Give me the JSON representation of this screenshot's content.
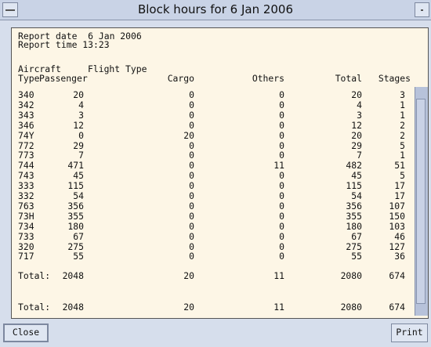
{
  "window": {
    "title": "Block hours for 6 Jan 2006"
  },
  "report": {
    "date_line": "Report date  6 Jan 2006",
    "time_line": "Report time 13:23",
    "group_header": {
      "aircraft": "Aircraft",
      "flight_type": "Flight Type"
    },
    "columns": [
      "Type",
      "Passenger",
      "Cargo",
      "Others",
      "Total",
      "Stages"
    ],
    "rows": [
      [
        "340",
        20,
        0,
        0,
        20,
        3
      ],
      [
        "342",
        4,
        0,
        0,
        4,
        1
      ],
      [
        "343",
        3,
        0,
        0,
        3,
        1
      ],
      [
        "346",
        12,
        0,
        0,
        12,
        2
      ],
      [
        "74Y",
        0,
        20,
        0,
        20,
        2
      ],
      [
        "772",
        29,
        0,
        0,
        29,
        5
      ],
      [
        "773",
        7,
        0,
        0,
        7,
        1
      ],
      [
        "744",
        471,
        0,
        11,
        482,
        51
      ],
      [
        "743",
        45,
        0,
        0,
        45,
        5
      ],
      [
        "333",
        115,
        0,
        0,
        115,
        17
      ],
      [
        "332",
        54,
        0,
        0,
        54,
        17
      ],
      [
        "763",
        356,
        0,
        0,
        356,
        107
      ],
      [
        "73H",
        355,
        0,
        0,
        355,
        150
      ],
      [
        "734",
        180,
        0,
        0,
        180,
        103
      ],
      [
        "733",
        67,
        0,
        0,
        67,
        46
      ],
      [
        "320",
        275,
        0,
        0,
        275,
        127
      ],
      [
        "717",
        55,
        0,
        0,
        55,
        36
      ]
    ],
    "totals": [
      [
        "Total:",
        2048,
        20,
        11,
        2080,
        674
      ],
      [
        "Total:",
        2048,
        20,
        11,
        2080,
        674
      ]
    ]
  },
  "buttons": {
    "close": "Close",
    "print": "Print"
  }
}
